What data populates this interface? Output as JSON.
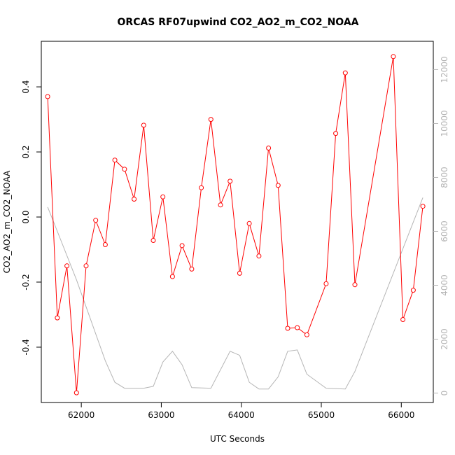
{
  "chart_data": {
    "type": "line",
    "title": "ORCAS RF07upwind CO2_AO2_m_CO2_NOAA",
    "xlabel": "UTC Seconds",
    "ylabel": "CO2_AO2_m_CO2_NOAA",
    "xlim": [
      61500,
      66400
    ],
    "ylim": [
      -0.57,
      0.54
    ],
    "y2lim": [
      -350,
      13050
    ],
    "xticks": [
      62000,
      63000,
      64000,
      65000,
      66000
    ],
    "yticks": [
      -0.4,
      -0.2,
      0.0,
      0.2,
      0.4
    ],
    "yticks_labels": [
      "-0.4",
      "-0.2",
      "0.0",
      "0.2",
      "0.4"
    ],
    "y2ticks": [
      0,
      2000,
      4000,
      6000,
      8000,
      10000,
      12000
    ],
    "grid": false,
    "series": [
      {
        "color": "#ff0000",
        "axis": "left",
        "markers": "open-circle",
        "x": [
          61580,
          61700,
          61820,
          61940,
          62060,
          62180,
          62300,
          62420,
          62540,
          62660,
          62780,
          62900,
          63020,
          63140,
          63260,
          63380,
          63500,
          63620,
          63740,
          63860,
          63980,
          64100,
          64220,
          64340,
          64460,
          64580,
          64700,
          64820,
          65060,
          65180,
          65300,
          65420,
          65900,
          66020,
          66150,
          66270
        ],
        "y": [
          0.37,
          -0.31,
          -0.15,
          -0.54,
          -0.15,
          -0.01,
          -0.085,
          0.175,
          0.147,
          0.055,
          0.282,
          -0.072,
          0.062,
          -0.183,
          -0.088,
          -0.16,
          0.09,
          0.3,
          0.037,
          0.11,
          -0.173,
          -0.02,
          -0.12,
          0.212,
          0.097,
          -0.342,
          -0.34,
          -0.362,
          -0.205,
          0.257,
          0.443,
          -0.208,
          0.493,
          -0.315,
          -0.225,
          0.033
        ]
      },
      {
        "color": "#b5b5b5",
        "axis": "right",
        "markers": "none",
        "x": [
          61580,
          61700,
          61940,
          62060,
          62180,
          62300,
          62420,
          62540,
          62660,
          62780,
          62900,
          63020,
          63140,
          63260,
          63380,
          63620,
          63860,
          63980,
          64100,
          64220,
          64340,
          64460,
          64580,
          64700,
          64820,
          65060,
          65300,
          65420,
          66270
        ],
        "y": [
          6900,
          6000,
          4200,
          3200,
          2200,
          1200,
          400,
          180,
          180,
          180,
          250,
          1150,
          1550,
          1050,
          200,
          180,
          1550,
          1400,
          400,
          150,
          150,
          600,
          1550,
          1600,
          700,
          180,
          150,
          800,
          7250
        ]
      }
    ]
  }
}
